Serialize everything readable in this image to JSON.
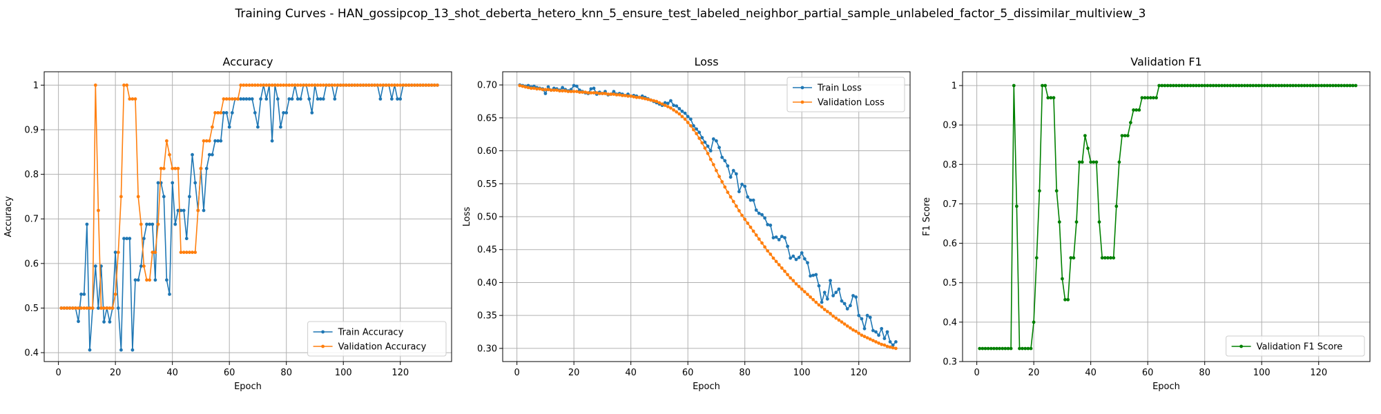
{
  "suptitle": "Training Curves - HAN_gossipcop_13_shot_deberta_hetero_knn_5_ensure_test_labeled_neighbor_partial_sample_unlabeled_factor_5_dissimilar_multiview_3",
  "colors": {
    "blue": "#1f77b4",
    "orange": "#ff7f0e",
    "green": "#008000",
    "grid": "#b0b0b0"
  },
  "chart_data": [
    {
      "type": "line",
      "title": "Accuracy",
      "xlabel": "Epoch",
      "ylabel": "Accuracy",
      "xlim": [
        -5,
        138
      ],
      "ylim": [
        0.38,
        1.03
      ],
      "xticks": [
        0,
        20,
        40,
        60,
        80,
        100,
        120
      ],
      "yticks": [
        0.4,
        0.5,
        0.6,
        0.7,
        0.8,
        0.9,
        1.0
      ],
      "grid": true,
      "legend": "lower-right",
      "series": [
        {
          "name": "Train Accuracy",
          "color": "#1f77b4",
          "x_start": 1,
          "values": [
            0.5,
            0.5,
            0.5,
            0.5,
            0.5,
            0.5,
            0.47,
            0.531,
            0.531,
            0.688,
            0.406,
            0.5,
            0.594,
            0.5,
            0.594,
            0.469,
            0.5,
            0.469,
            0.5,
            0.625,
            0.5,
            0.406,
            0.656,
            0.656,
            0.656,
            0.406,
            0.563,
            0.563,
            0.594,
            0.656,
            0.688,
            0.688,
            0.688,
            0.563,
            0.781,
            0.781,
            0.75,
            0.563,
            0.531,
            0.781,
            0.688,
            0.719,
            0.719,
            0.719,
            0.656,
            0.75,
            0.844,
            0.781,
            0.719,
            0.813,
            0.719,
            0.813,
            0.844,
            0.844,
            0.875,
            0.875,
            0.875,
            0.938,
            0.938,
            0.906,
            0.938,
            0.969,
            0.969,
            0.969,
            0.969,
            0.969,
            0.969,
            0.969,
            0.938,
            0.906,
            0.969,
            1.0,
            0.969,
            1.0,
            0.875,
            1.0,
            0.969,
            0.906,
            0.938,
            0.938,
            0.969,
            0.969,
            1.0,
            0.969,
            0.969,
            1.0,
            1.0,
            0.969,
            0.938,
            1.0,
            0.969,
            0.969,
            0.969,
            1.0,
            1.0,
            1.0,
            0.969,
            1.0,
            1.0,
            1.0,
            1.0,
            1.0,
            1.0,
            1.0,
            1.0,
            1.0,
            1.0,
            1.0,
            1.0,
            1.0,
            1.0,
            1.0,
            0.969,
            1.0,
            1.0,
            1.0,
            0.969,
            1.0,
            0.969,
            0.969,
            1.0,
            1.0,
            1.0,
            1.0,
            1.0,
            1.0,
            1.0,
            1.0,
            1.0,
            1.0,
            1.0,
            1.0,
            1.0
          ]
        },
        {
          "name": "Validation Accuracy",
          "color": "#ff7f0e",
          "x_start": 1,
          "values": [
            0.5,
            0.5,
            0.5,
            0.5,
            0.5,
            0.5,
            0.5,
            0.5,
            0.5,
            0.5,
            0.5,
            0.5,
            1.0,
            0.719,
            0.5,
            0.5,
            0.5,
            0.5,
            0.5,
            0.531,
            0.625,
            0.75,
            1.0,
            1.0,
            0.969,
            0.969,
            0.969,
            0.75,
            0.688,
            0.594,
            0.563,
            0.563,
            0.625,
            0.625,
            0.688,
            0.813,
            0.813,
            0.875,
            0.844,
            0.813,
            0.813,
            0.813,
            0.625,
            0.625,
            0.625,
            0.625,
            0.625,
            0.625,
            0.719,
            0.813,
            0.875,
            0.875,
            0.875,
            0.906,
            0.938,
            0.938,
            0.938,
            0.969,
            0.969,
            0.969,
            0.969,
            0.969,
            0.969,
            1.0,
            1.0,
            1.0,
            1.0,
            1.0,
            1.0,
            1.0,
            1.0,
            1.0,
            1.0,
            1.0,
            1.0,
            1.0,
            1.0,
            1.0,
            1.0,
            1.0,
            1.0,
            1.0,
            1.0,
            1.0,
            1.0,
            1.0,
            1.0,
            1.0,
            1.0,
            1.0,
            1.0,
            1.0,
            1.0,
            1.0,
            1.0,
            1.0,
            1.0,
            1.0,
            1.0,
            1.0,
            1.0,
            1.0,
            1.0,
            1.0,
            1.0,
            1.0,
            1.0,
            1.0,
            1.0,
            1.0,
            1.0,
            1.0,
            1.0,
            1.0,
            1.0,
            1.0,
            1.0,
            1.0,
            1.0,
            1.0,
            1.0,
            1.0,
            1.0,
            1.0,
            1.0,
            1.0,
            1.0,
            1.0,
            1.0,
            1.0,
            1.0,
            1.0,
            1.0
          ]
        }
      ]
    },
    {
      "type": "line",
      "title": "Loss",
      "xlabel": "Epoch",
      "ylabel": "Loss",
      "xlim": [
        -5,
        138
      ],
      "ylim": [
        0.28,
        0.72
      ],
      "xticks": [
        0,
        20,
        40,
        60,
        80,
        100,
        120
      ],
      "yticks": [
        0.3,
        0.35,
        0.4,
        0.45,
        0.5,
        0.55,
        0.6,
        0.65,
        0.7
      ],
      "ytick_labels": [
        "0.30",
        "0.35",
        "0.40",
        "0.45",
        "0.50",
        "0.55",
        "0.60",
        "0.65",
        "0.70"
      ],
      "grid": true,
      "legend": "upper-right",
      "series": [
        {
          "name": "Train Loss",
          "color": "#1f77b4",
          "x_start": 1,
          "values": [
            0.7,
            0.699,
            0.698,
            0.699,
            0.697,
            0.698,
            0.696,
            0.695,
            0.694,
            0.687,
            0.697,
            0.692,
            0.695,
            0.694,
            0.692,
            0.696,
            0.693,
            0.691,
            0.693,
            0.699,
            0.698,
            0.692,
            0.69,
            0.688,
            0.687,
            0.694,
            0.695,
            0.686,
            0.689,
            0.687,
            0.69,
            0.685,
            0.686,
            0.69,
            0.686,
            0.687,
            0.686,
            0.684,
            0.686,
            0.683,
            0.684,
            0.683,
            0.681,
            0.683,
            0.681,
            0.679,
            0.677,
            0.675,
            0.673,
            0.671,
            0.669,
            0.673,
            0.672,
            0.676,
            0.669,
            0.668,
            0.664,
            0.66,
            0.657,
            0.652,
            0.648,
            0.638,
            0.633,
            0.628,
            0.62,
            0.613,
            0.607,
            0.6,
            0.618,
            0.615,
            0.605,
            0.59,
            0.585,
            0.577,
            0.56,
            0.57,
            0.565,
            0.538,
            0.549,
            0.546,
            0.53,
            0.525,
            0.525,
            0.51,
            0.505,
            0.503,
            0.498,
            0.488,
            0.487,
            0.468,
            0.469,
            0.465,
            0.47,
            0.468,
            0.455,
            0.437,
            0.44,
            0.435,
            0.438,
            0.445,
            0.436,
            0.43,
            0.41,
            0.411,
            0.412,
            0.395,
            0.37,
            0.385,
            0.375,
            0.403,
            0.38,
            0.385,
            0.39,
            0.372,
            0.368,
            0.36,
            0.365,
            0.38,
            0.378,
            0.35,
            0.345,
            0.33,
            0.35,
            0.347,
            0.327,
            0.325,
            0.32,
            0.33,
            0.315,
            0.325,
            0.31,
            0.305,
            0.31
          ]
        },
        {
          "name": "Validation Loss",
          "color": "#ff7f0e",
          "x_start": 1,
          "values": [
            0.699,
            0.698,
            0.697,
            0.696,
            0.695,
            0.695,
            0.694,
            0.694,
            0.693,
            0.693,
            0.693,
            0.692,
            0.692,
            0.692,
            0.691,
            0.691,
            0.691,
            0.69,
            0.69,
            0.69,
            0.69,
            0.689,
            0.689,
            0.689,
            0.688,
            0.688,
            0.688,
            0.688,
            0.687,
            0.687,
            0.687,
            0.686,
            0.686,
            0.686,
            0.685,
            0.685,
            0.684,
            0.684,
            0.683,
            0.683,
            0.682,
            0.681,
            0.681,
            0.68,
            0.679,
            0.678,
            0.677,
            0.676,
            0.675,
            0.673,
            0.671,
            0.669,
            0.667,
            0.665,
            0.662,
            0.659,
            0.656,
            0.652,
            0.648,
            0.643,
            0.638,
            0.632,
            0.626,
            0.619,
            0.612,
            0.604,
            0.596,
            0.587,
            0.579,
            0.57,
            0.561,
            0.553,
            0.545,
            0.537,
            0.53,
            0.523,
            0.516,
            0.509,
            0.502,
            0.496,
            0.49,
            0.484,
            0.478,
            0.472,
            0.466,
            0.46,
            0.454,
            0.448,
            0.443,
            0.437,
            0.432,
            0.427,
            0.422,
            0.417,
            0.412,
            0.407,
            0.403,
            0.398,
            0.394,
            0.39,
            0.386,
            0.382,
            0.378,
            0.374,
            0.37,
            0.366,
            0.363,
            0.359,
            0.356,
            0.353,
            0.349,
            0.346,
            0.343,
            0.34,
            0.337,
            0.334,
            0.331,
            0.328,
            0.326,
            0.323,
            0.32,
            0.318,
            0.316,
            0.314,
            0.312,
            0.31,
            0.308,
            0.306,
            0.305,
            0.303,
            0.302,
            0.301,
            0.3
          ]
        }
      ]
    },
    {
      "type": "line",
      "title": "Validation F1",
      "xlabel": "Epoch",
      "ylabel": "F1 Score",
      "xlim": [
        -5,
        138
      ],
      "ylim": [
        0.3,
        1.035
      ],
      "xticks": [
        0,
        20,
        40,
        60,
        80,
        100,
        120
      ],
      "yticks": [
        0.3,
        0.4,
        0.5,
        0.6,
        0.7,
        0.8,
        0.9,
        1.0
      ],
      "grid": true,
      "legend": "lower-right",
      "series": [
        {
          "name": "Validation F1 Score",
          "color": "#008000",
          "x_start": 1,
          "values": [
            0.333,
            0.333,
            0.333,
            0.333,
            0.333,
            0.333,
            0.333,
            0.333,
            0.333,
            0.333,
            0.333,
            0.333,
            1.0,
            0.694,
            0.333,
            0.333,
            0.333,
            0.333,
            0.333,
            0.4,
            0.563,
            0.733,
            1.0,
            1.0,
            0.969,
            0.969,
            0.969,
            0.733,
            0.654,
            0.51,
            0.457,
            0.457,
            0.563,
            0.563,
            0.654,
            0.806,
            0.806,
            0.873,
            0.841,
            0.806,
            0.806,
            0.806,
            0.654,
            0.563,
            0.563,
            0.563,
            0.563,
            0.563,
            0.694,
            0.806,
            0.873,
            0.873,
            0.873,
            0.906,
            0.938,
            0.938,
            0.938,
            0.969,
            0.969,
            0.969,
            0.969,
            0.969,
            0.969,
            1.0,
            1.0,
            1.0,
            1.0,
            1.0,
            1.0,
            1.0,
            1.0,
            1.0,
            1.0,
            1.0,
            1.0,
            1.0,
            1.0,
            1.0,
            1.0,
            1.0,
            1.0,
            1.0,
            1.0,
            1.0,
            1.0,
            1.0,
            1.0,
            1.0,
            1.0,
            1.0,
            1.0,
            1.0,
            1.0,
            1.0,
            1.0,
            1.0,
            1.0,
            1.0,
            1.0,
            1.0,
            1.0,
            1.0,
            1.0,
            1.0,
            1.0,
            1.0,
            1.0,
            1.0,
            1.0,
            1.0,
            1.0,
            1.0,
            1.0,
            1.0,
            1.0,
            1.0,
            1.0,
            1.0,
            1.0,
            1.0,
            1.0,
            1.0,
            1.0,
            1.0,
            1.0,
            1.0,
            1.0,
            1.0,
            1.0,
            1.0,
            1.0,
            1.0,
            1.0
          ]
        }
      ]
    }
  ]
}
